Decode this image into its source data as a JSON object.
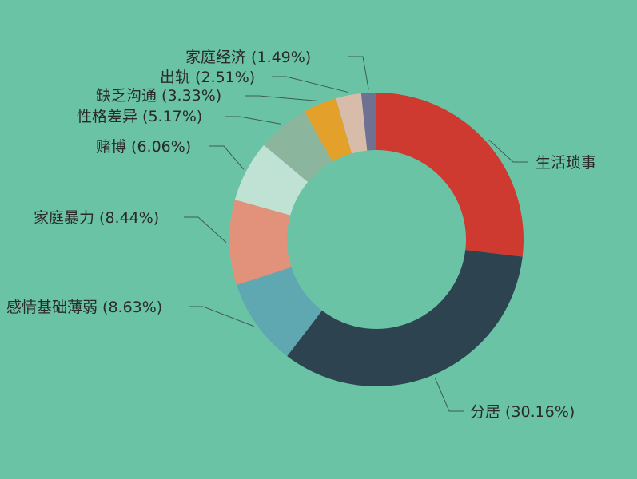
{
  "chart_data": {
    "type": "pie",
    "donut": true,
    "title": "",
    "slices": [
      {
        "label": "生活琐事",
        "display": "生活琐事",
        "value": 24.18,
        "color": "#cf3a30"
      },
      {
        "label": "分居",
        "display": "分居 (30.16%)",
        "value": 30.16,
        "color": "#2e4350"
      },
      {
        "label": "感情基础薄弱",
        "display": "感情基础薄弱 (8.63%)",
        "value": 8.63,
        "color": "#5fa8b2"
      },
      {
        "label": "家庭暴力",
        "display": "家庭暴力 (8.44%)",
        "value": 8.44,
        "color": "#e2917a"
      },
      {
        "label": "赌博",
        "display": "赌博 (6.06%)",
        "value": 6.06,
        "color": "#c0e2d4"
      },
      {
        "label": "性格差异",
        "display": "性格差异 (5.17%)",
        "value": 5.17,
        "color": "#8bb59d"
      },
      {
        "label": "缺乏沟通",
        "display": "缺乏沟通 (3.33%)",
        "value": 3.33,
        "color": "#e3a02a"
      },
      {
        "label": "出轨",
        "display": "出轨 (2.51%)",
        "value": 2.51,
        "color": "#d8bcaa"
      },
      {
        "label": "家庭经济",
        "display": "家庭经济 (1.49%)",
        "value": 1.49,
        "color": "#6e7191"
      }
    ],
    "start_angle_deg": 90,
    "direction": "clockwise",
    "legend": "none",
    "label_style": "leader-lines",
    "background": "#6bc3a6"
  }
}
